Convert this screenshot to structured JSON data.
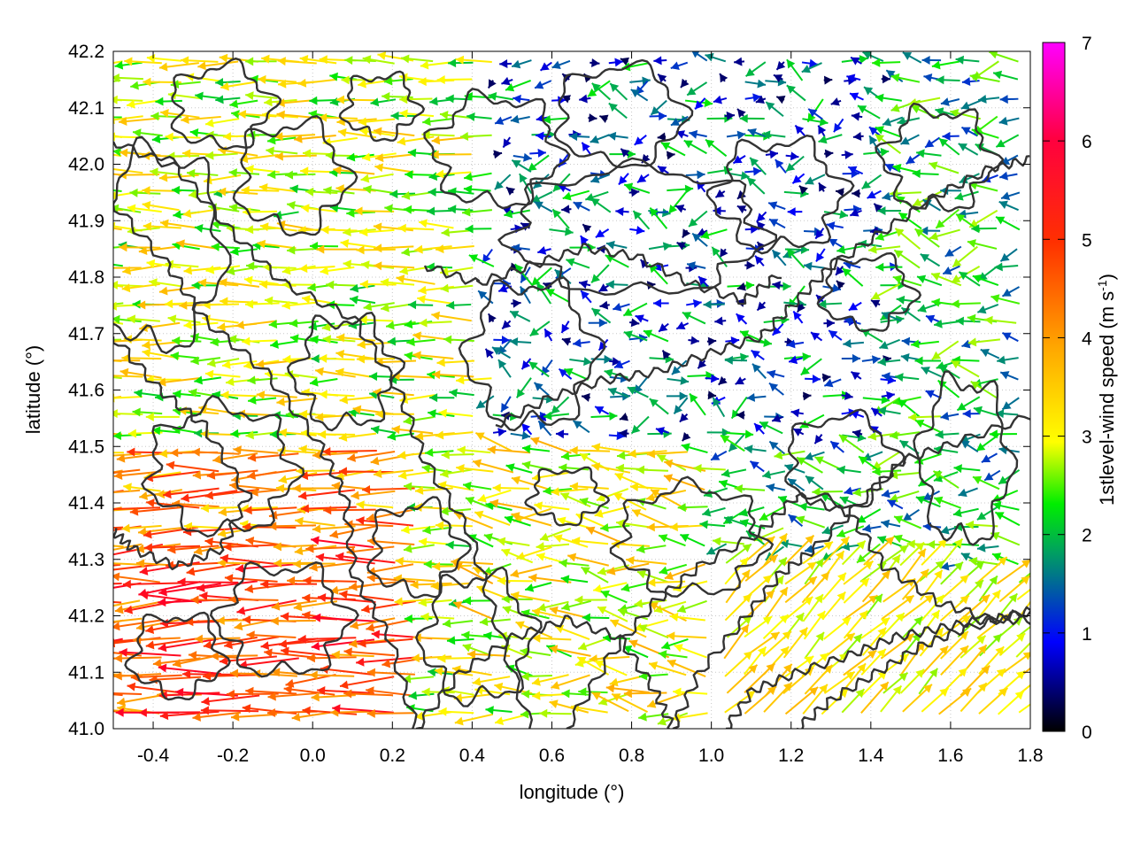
{
  "chart_data": {
    "type": "vector-field",
    "xlabel": "longitude (°)",
    "ylabel": "latitude (°)",
    "xlim": [
      -0.5,
      1.8
    ],
    "ylim": [
      41.0,
      42.2
    ],
    "x_ticks": [
      "-0.4",
      "-0.2",
      "0.0",
      "0.2",
      "0.4",
      "0.6",
      "0.8",
      "1.0",
      "1.2",
      "1.4",
      "1.6",
      "1.8"
    ],
    "x_tick_values": [
      -0.4,
      -0.2,
      0.0,
      0.2,
      0.4,
      0.6,
      0.8,
      1.0,
      1.2,
      1.4,
      1.6,
      1.8
    ],
    "y_ticks": [
      "41.0",
      "41.1",
      "41.2",
      "41.3",
      "41.4",
      "41.5",
      "41.6",
      "41.7",
      "41.8",
      "41.9",
      "42.0",
      "42.1",
      "42.2"
    ],
    "y_tick_values": [
      41.0,
      41.1,
      41.2,
      41.3,
      41.4,
      41.5,
      41.6,
      41.7,
      41.8,
      41.9,
      42.0,
      42.1,
      42.2
    ],
    "grid": true,
    "colorbar": {
      "label_main": "1stlevel-wind speed (m s",
      "label_sup": "-1",
      "label_close": ")",
      "range": [
        0,
        7
      ],
      "ticks": [
        "0",
        "1",
        "2",
        "3",
        "4",
        "5",
        "6",
        "7"
      ],
      "tick_values": [
        0,
        1,
        2,
        3,
        4,
        5,
        6,
        7
      ],
      "colors": [
        "#000000",
        "#0000ff",
        "#00a000",
        "#00ff00",
        "#ffff00",
        "#ffa000",
        "#ff4000",
        "#ff0000",
        "#ff00ff"
      ]
    },
    "contour_color": "#333333",
    "description_regions": [
      {
        "name": "west-strong-easterlies",
        "lon": [
          -0.5,
          0.3
        ],
        "lat": [
          41.0,
          41.5
        ],
        "speed": [
          3,
          5.8
        ],
        "direction": "toward-west"
      },
      {
        "name": "northwest-moderate",
        "lon": [
          -0.5,
          0.4
        ],
        "lat": [
          41.5,
          42.2
        ],
        "speed": [
          2,
          3.8
        ],
        "direction": "toward-west"
      },
      {
        "name": "central-weak",
        "lon": [
          0.4,
          1.4
        ],
        "lat": [
          41.5,
          42.2
        ],
        "speed": [
          0.3,
          2.2
        ],
        "direction": "variable"
      },
      {
        "name": "southeast-northeastward",
        "lon": [
          1.0,
          1.8
        ],
        "lat": [
          41.0,
          41.35
        ],
        "speed": [
          2.5,
          3.8
        ],
        "direction": "toward-northeast"
      }
    ]
  }
}
